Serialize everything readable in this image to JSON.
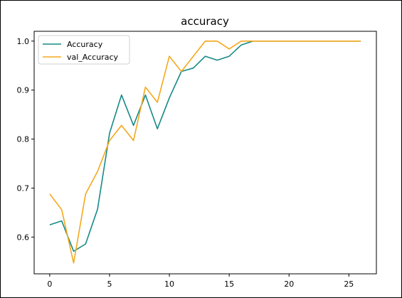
{
  "chart_data": {
    "type": "line",
    "title": "accuracy",
    "xlabel": "",
    "ylabel": "",
    "xlim": [
      -1.3,
      27.3
    ],
    "ylim": [
      0.525,
      1.02
    ],
    "xticks": [
      0,
      5,
      10,
      15,
      20,
      25
    ],
    "yticks": [
      0.6,
      0.7,
      0.8,
      0.9,
      1.0
    ],
    "xtick_labels": [
      "0",
      "5",
      "10",
      "15",
      "20",
      "25"
    ],
    "ytick_labels": [
      "0.6",
      "0.7",
      "0.8",
      "0.9",
      "1.0"
    ],
    "grid": false,
    "legend_position": "upper-left",
    "x": [
      0,
      1,
      2,
      3,
      4,
      5,
      6,
      7,
      8,
      9,
      10,
      11,
      12,
      13,
      14,
      15,
      16,
      17,
      18,
      19,
      20,
      21,
      22,
      23,
      24,
      25,
      26
    ],
    "series": [
      {
        "name": "Accuracy",
        "color": "#178a86",
        "values": [
          0.625,
          0.633,
          0.571,
          0.586,
          0.657,
          0.812,
          0.89,
          0.828,
          0.89,
          0.821,
          0.884,
          0.938,
          0.945,
          0.969,
          0.961,
          0.969,
          0.992,
          1.0,
          1.0,
          1.0,
          1.0,
          1.0,
          1.0,
          1.0,
          1.0,
          1.0,
          1.0
        ]
      },
      {
        "name": "val_Accuracy",
        "color": "#f5a81c",
        "values": [
          0.688,
          0.656,
          0.547,
          0.688,
          0.734,
          0.797,
          0.828,
          0.797,
          0.906,
          0.875,
          0.969,
          0.938,
          0.969,
          1.0,
          1.0,
          0.984,
          1.0,
          1.0,
          1.0,
          1.0,
          1.0,
          1.0,
          1.0,
          1.0,
          1.0,
          1.0,
          1.0
        ]
      }
    ]
  }
}
